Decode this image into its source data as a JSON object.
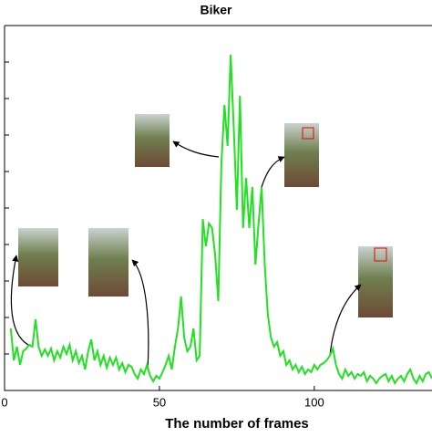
{
  "chart_data": {
    "type": "line",
    "title": "Biker",
    "x_label": "The number of frames",
    "x": [
      2,
      3,
      4,
      5,
      6,
      7,
      8,
      9,
      10,
      11,
      12,
      13,
      14,
      15,
      16,
      17,
      18,
      19,
      20,
      21,
      22,
      23,
      24,
      25,
      26,
      27,
      28,
      29,
      30,
      31,
      32,
      33,
      34,
      35,
      36,
      37,
      38,
      39,
      40,
      41,
      42,
      43,
      44,
      45,
      46,
      47,
      48,
      49,
      50,
      51,
      52,
      53,
      54,
      55,
      56,
      57,
      58,
      59,
      60,
      61,
      62,
      63,
      64,
      65,
      66,
      67,
      68,
      69,
      70,
      71,
      72,
      73,
      74,
      75,
      76,
      77,
      78,
      79,
      80,
      81,
      82,
      83,
      84,
      85,
      86,
      87,
      88,
      89,
      90,
      91,
      92,
      93,
      94,
      95,
      96,
      97,
      98,
      99,
      100,
      101,
      102,
      103,
      104,
      105,
      106,
      107,
      108,
      109,
      110,
      111,
      112,
      113,
      114,
      115,
      116,
      117,
      118,
      119,
      120,
      121,
      122,
      123,
      124,
      125,
      126,
      127,
      128,
      129,
      130,
      131,
      132,
      133,
      134,
      135,
      136,
      137,
      138
    ],
    "series": [
      {
        "color": "#22e022",
        "values": [
          1.7,
          0.825,
          1.2,
          0.7,
          1.075,
          1.15,
          1.25,
          1.2,
          1.95,
          1.2,
          0.95,
          1.125,
          0.95,
          1.15,
          0.825,
          1.075,
          0.9,
          1.2,
          1.0,
          1.25,
          0.825,
          1.075,
          0.75,
          0.95,
          0.575,
          1.075,
          1.4,
          0.825,
          1.075,
          0.7,
          0.95,
          0.625,
          0.9,
          0.7,
          0.9,
          0.575,
          0.75,
          0.5,
          0.7,
          0.65,
          0.45,
          0.325,
          0.575,
          0.45,
          0.7,
          0.4,
          0.25,
          0.4,
          0.325,
          0.5,
          0.7,
          0.95,
          0.575,
          1.2,
          1.7,
          2.575,
          1.45,
          1.075,
          1.2,
          1.7,
          0.825,
          0.95,
          4.7,
          3.95,
          4.575,
          4.45,
          3.7,
          2.45,
          6.2,
          7.825,
          6.7,
          9.2,
          7.2,
          4.95,
          8.075,
          4.45,
          5.825,
          4.45,
          5.575,
          3.45,
          4.575,
          5.575,
          3.45,
          2.075,
          1.45,
          1.2,
          1.325,
          0.95,
          1.075,
          0.7,
          0.825,
          0.575,
          0.7,
          0.5,
          0.65,
          0.45,
          0.575,
          0.5,
          0.7,
          0.575,
          0.7,
          0.75,
          0.825,
          0.95,
          1.15,
          0.7,
          0.45,
          0.325,
          0.575,
          0.4,
          0.5,
          0.325,
          0.45,
          0.4,
          0.5,
          0.25,
          0.4,
          0.325,
          0.2,
          0.325,
          0.4,
          0.45,
          0.25,
          0.4,
          0.2,
          0.325,
          0.4,
          0.25,
          0.45,
          0.575,
          0.325,
          0.2,
          0.4,
          0.25,
          0.45,
          0.5,
          0.325
        ]
      }
    ],
    "xlim": [
      0,
      138
    ],
    "xticks": [
      0,
      50,
      100
    ],
    "ylim": [
      0,
      10
    ],
    "yticks": [
      1,
      2,
      3,
      4,
      5,
      6,
      7,
      8,
      9
    ]
  }
}
